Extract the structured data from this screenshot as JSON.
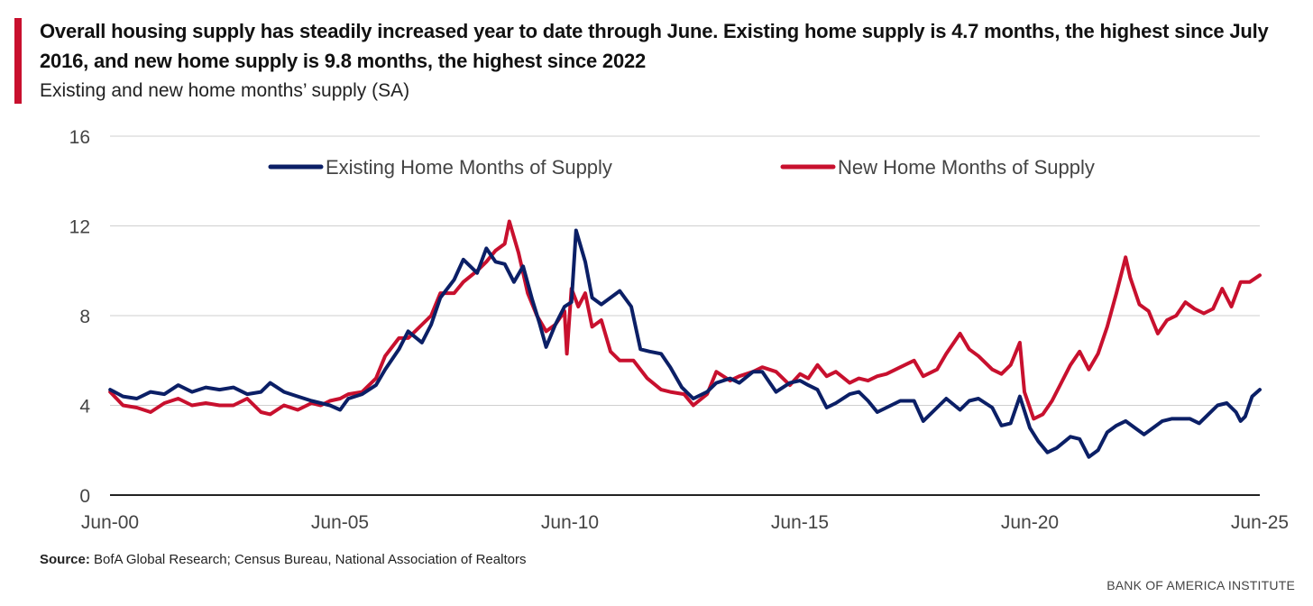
{
  "title": "Overall housing supply has steadily increased year to date through June. Existing home supply is 4.7 months, the highest since July 2016, and new home supply is 9.8 months, the highest since 2022",
  "subtitle": "Existing and new home months’ supply (SA)",
  "source": {
    "label": "Source:",
    "text": " BofA Global Research; Census Bureau, National Association of Realtors"
  },
  "brand": "BANK OF AMERICA INSTITUTE",
  "colors": {
    "accent": "#c8102e",
    "existing": "#0b1f66",
    "new": "#c8102e",
    "grid": "#cfcfcf"
  },
  "chart_data": {
    "type": "line",
    "ylim": [
      0,
      16
    ],
    "yticks": [
      0,
      4,
      8,
      12,
      16
    ],
    "xlim": [
      2000.417,
      2025.417
    ],
    "xticks": [
      {
        "label": "Jun-00",
        "x": 2000.417
      },
      {
        "label": "Jun-05",
        "x": 2005.417
      },
      {
        "label": "Jun-10",
        "x": 2010.417
      },
      {
        "label": "Jun-15",
        "x": 2015.417
      },
      {
        "label": "Jun-20",
        "x": 2020.417
      },
      {
        "label": "Jun-25",
        "x": 2025.417
      }
    ],
    "grid": true,
    "legend_position": "top",
    "series": [
      {
        "name": "Existing Home Months of Supply",
        "color": "#0b1f66",
        "points": [
          [
            2000.42,
            4.7
          ],
          [
            2000.7,
            4.4
          ],
          [
            2001.0,
            4.3
          ],
          [
            2001.3,
            4.6
          ],
          [
            2001.6,
            4.5
          ],
          [
            2001.9,
            4.9
          ],
          [
            2002.2,
            4.6
          ],
          [
            2002.5,
            4.8
          ],
          [
            2002.8,
            4.7
          ],
          [
            2003.1,
            4.8
          ],
          [
            2003.4,
            4.5
          ],
          [
            2003.7,
            4.6
          ],
          [
            2003.9,
            5.0
          ],
          [
            2004.2,
            4.6
          ],
          [
            2004.5,
            4.4
          ],
          [
            2004.8,
            4.2
          ],
          [
            2005.0,
            4.1
          ],
          [
            2005.2,
            4.0
          ],
          [
            2005.42,
            3.8
          ],
          [
            2005.6,
            4.3
          ],
          [
            2005.9,
            4.5
          ],
          [
            2006.2,
            4.9
          ],
          [
            2006.4,
            5.6
          ],
          [
            2006.7,
            6.5
          ],
          [
            2006.9,
            7.3
          ],
          [
            2007.2,
            6.8
          ],
          [
            2007.4,
            7.6
          ],
          [
            2007.6,
            8.8
          ],
          [
            2007.9,
            9.6
          ],
          [
            2008.1,
            10.5
          ],
          [
            2008.4,
            9.9
          ],
          [
            2008.6,
            11.0
          ],
          [
            2008.8,
            10.4
          ],
          [
            2009.0,
            10.3
          ],
          [
            2009.2,
            9.5
          ],
          [
            2009.4,
            10.2
          ],
          [
            2009.6,
            8.7
          ],
          [
            2009.75,
            7.7
          ],
          [
            2009.9,
            6.6
          ],
          [
            2010.1,
            7.6
          ],
          [
            2010.3,
            8.4
          ],
          [
            2010.45,
            8.6
          ],
          [
            2010.55,
            11.8
          ],
          [
            2010.75,
            10.4
          ],
          [
            2010.9,
            8.8
          ],
          [
            2011.1,
            8.5
          ],
          [
            2011.3,
            8.8
          ],
          [
            2011.5,
            9.1
          ],
          [
            2011.75,
            8.4
          ],
          [
            2011.95,
            6.5
          ],
          [
            2012.15,
            6.4
          ],
          [
            2012.4,
            6.3
          ],
          [
            2012.6,
            5.7
          ],
          [
            2012.85,
            4.8
          ],
          [
            2013.1,
            4.3
          ],
          [
            2013.4,
            4.6
          ],
          [
            2013.6,
            5.0
          ],
          [
            2013.9,
            5.2
          ],
          [
            2014.1,
            5.0
          ],
          [
            2014.4,
            5.5
          ],
          [
            2014.6,
            5.5
          ],
          [
            2014.9,
            4.6
          ],
          [
            2015.2,
            5.0
          ],
          [
            2015.42,
            5.1
          ],
          [
            2015.6,
            4.9
          ],
          [
            2015.8,
            4.7
          ],
          [
            2016.0,
            3.9
          ],
          [
            2016.2,
            4.1
          ],
          [
            2016.5,
            4.5
          ],
          [
            2016.7,
            4.6
          ],
          [
            2016.9,
            4.2
          ],
          [
            2017.1,
            3.7
          ],
          [
            2017.3,
            3.9
          ],
          [
            2017.6,
            4.2
          ],
          [
            2017.9,
            4.2
          ],
          [
            2018.1,
            3.3
          ],
          [
            2018.4,
            3.9
          ],
          [
            2018.6,
            4.3
          ],
          [
            2018.9,
            3.8
          ],
          [
            2019.1,
            4.2
          ],
          [
            2019.3,
            4.3
          ],
          [
            2019.6,
            3.9
          ],
          [
            2019.8,
            3.1
          ],
          [
            2020.0,
            3.2
          ],
          [
            2020.2,
            4.4
          ],
          [
            2020.417,
            3.0
          ],
          [
            2020.6,
            2.4
          ],
          [
            2020.8,
            1.9
          ],
          [
            2021.0,
            2.1
          ],
          [
            2021.3,
            2.6
          ],
          [
            2021.5,
            2.5
          ],
          [
            2021.7,
            1.7
          ],
          [
            2021.9,
            2.0
          ],
          [
            2022.1,
            2.8
          ],
          [
            2022.3,
            3.1
          ],
          [
            2022.5,
            3.3
          ],
          [
            2022.7,
            3.0
          ],
          [
            2022.9,
            2.7
          ],
          [
            2023.1,
            3.0
          ],
          [
            2023.3,
            3.3
          ],
          [
            2023.5,
            3.4
          ],
          [
            2023.7,
            3.4
          ],
          [
            2023.9,
            3.4
          ],
          [
            2024.1,
            3.2
          ],
          [
            2024.3,
            3.6
          ],
          [
            2024.5,
            4.0
          ],
          [
            2024.7,
            4.1
          ],
          [
            2024.9,
            3.7
          ],
          [
            2025.0,
            3.3
          ],
          [
            2025.1,
            3.5
          ],
          [
            2025.25,
            4.4
          ],
          [
            2025.417,
            4.7
          ]
        ]
      },
      {
        "name": "New Home Months of Supply",
        "color": "#c8102e",
        "points": [
          [
            2000.42,
            4.6
          ],
          [
            2000.7,
            4.0
          ],
          [
            2001.0,
            3.9
          ],
          [
            2001.3,
            3.7
          ],
          [
            2001.6,
            4.1
          ],
          [
            2001.9,
            4.3
          ],
          [
            2002.2,
            4.0
          ],
          [
            2002.5,
            4.1
          ],
          [
            2002.8,
            4.0
          ],
          [
            2003.1,
            4.0
          ],
          [
            2003.4,
            4.3
          ],
          [
            2003.7,
            3.7
          ],
          [
            2003.9,
            3.6
          ],
          [
            2004.2,
            4.0
          ],
          [
            2004.5,
            3.8
          ],
          [
            2004.8,
            4.1
          ],
          [
            2005.0,
            4.0
          ],
          [
            2005.2,
            4.2
          ],
          [
            2005.42,
            4.3
          ],
          [
            2005.6,
            4.5
          ],
          [
            2005.9,
            4.6
          ],
          [
            2006.2,
            5.2
          ],
          [
            2006.4,
            6.2
          ],
          [
            2006.7,
            7.0
          ],
          [
            2006.9,
            7.0
          ],
          [
            2007.2,
            7.6
          ],
          [
            2007.4,
            8.0
          ],
          [
            2007.6,
            9.0
          ],
          [
            2007.9,
            9.0
          ],
          [
            2008.1,
            9.5
          ],
          [
            2008.4,
            10.0
          ],
          [
            2008.6,
            10.4
          ],
          [
            2008.8,
            10.9
          ],
          [
            2009.0,
            11.2
          ],
          [
            2009.1,
            12.2
          ],
          [
            2009.3,
            10.8
          ],
          [
            2009.5,
            9.0
          ],
          [
            2009.7,
            8.0
          ],
          [
            2009.9,
            7.3
          ],
          [
            2010.1,
            7.6
          ],
          [
            2010.3,
            8.2
          ],
          [
            2010.35,
            6.3
          ],
          [
            2010.45,
            9.2
          ],
          [
            2010.6,
            8.4
          ],
          [
            2010.75,
            9.0
          ],
          [
            2010.9,
            7.5
          ],
          [
            2011.1,
            7.8
          ],
          [
            2011.3,
            6.4
          ],
          [
            2011.5,
            6.0
          ],
          [
            2011.8,
            6.0
          ],
          [
            2012.1,
            5.2
          ],
          [
            2012.4,
            4.7
          ],
          [
            2012.6,
            4.6
          ],
          [
            2012.9,
            4.5
          ],
          [
            2013.1,
            4.0
          ],
          [
            2013.4,
            4.5
          ],
          [
            2013.6,
            5.5
          ],
          [
            2013.9,
            5.1
          ],
          [
            2014.1,
            5.3
          ],
          [
            2014.4,
            5.5
          ],
          [
            2014.6,
            5.7
          ],
          [
            2014.9,
            5.5
          ],
          [
            2015.2,
            4.9
          ],
          [
            2015.42,
            5.4
          ],
          [
            2015.6,
            5.2
          ],
          [
            2015.8,
            5.8
          ],
          [
            2016.0,
            5.3
          ],
          [
            2016.2,
            5.5
          ],
          [
            2016.5,
            5.0
          ],
          [
            2016.7,
            5.2
          ],
          [
            2016.9,
            5.1
          ],
          [
            2017.1,
            5.3
          ],
          [
            2017.3,
            5.4
          ],
          [
            2017.6,
            5.7
          ],
          [
            2017.9,
            6.0
          ],
          [
            2018.1,
            5.3
          ],
          [
            2018.4,
            5.6
          ],
          [
            2018.6,
            6.3
          ],
          [
            2018.9,
            7.2
          ],
          [
            2019.1,
            6.5
          ],
          [
            2019.3,
            6.2
          ],
          [
            2019.6,
            5.6
          ],
          [
            2019.8,
            5.4
          ],
          [
            2020.0,
            5.8
          ],
          [
            2020.2,
            6.8
          ],
          [
            2020.3,
            4.6
          ],
          [
            2020.5,
            3.4
          ],
          [
            2020.7,
            3.6
          ],
          [
            2020.9,
            4.2
          ],
          [
            2021.1,
            5.0
          ],
          [
            2021.3,
            5.8
          ],
          [
            2021.5,
            6.4
          ],
          [
            2021.7,
            5.6
          ],
          [
            2021.9,
            6.3
          ],
          [
            2022.1,
            7.5
          ],
          [
            2022.3,
            9.0
          ],
          [
            2022.5,
            10.6
          ],
          [
            2022.6,
            9.7
          ],
          [
            2022.8,
            8.5
          ],
          [
            2023.0,
            8.2
          ],
          [
            2023.2,
            7.2
          ],
          [
            2023.4,
            7.8
          ],
          [
            2023.6,
            8.0
          ],
          [
            2023.8,
            8.6
          ],
          [
            2024.0,
            8.3
          ],
          [
            2024.2,
            8.1
          ],
          [
            2024.4,
            8.3
          ],
          [
            2024.6,
            9.2
          ],
          [
            2024.8,
            8.4
          ],
          [
            2025.0,
            9.5
          ],
          [
            2025.2,
            9.5
          ],
          [
            2025.417,
            9.8
          ]
        ]
      }
    ]
  }
}
